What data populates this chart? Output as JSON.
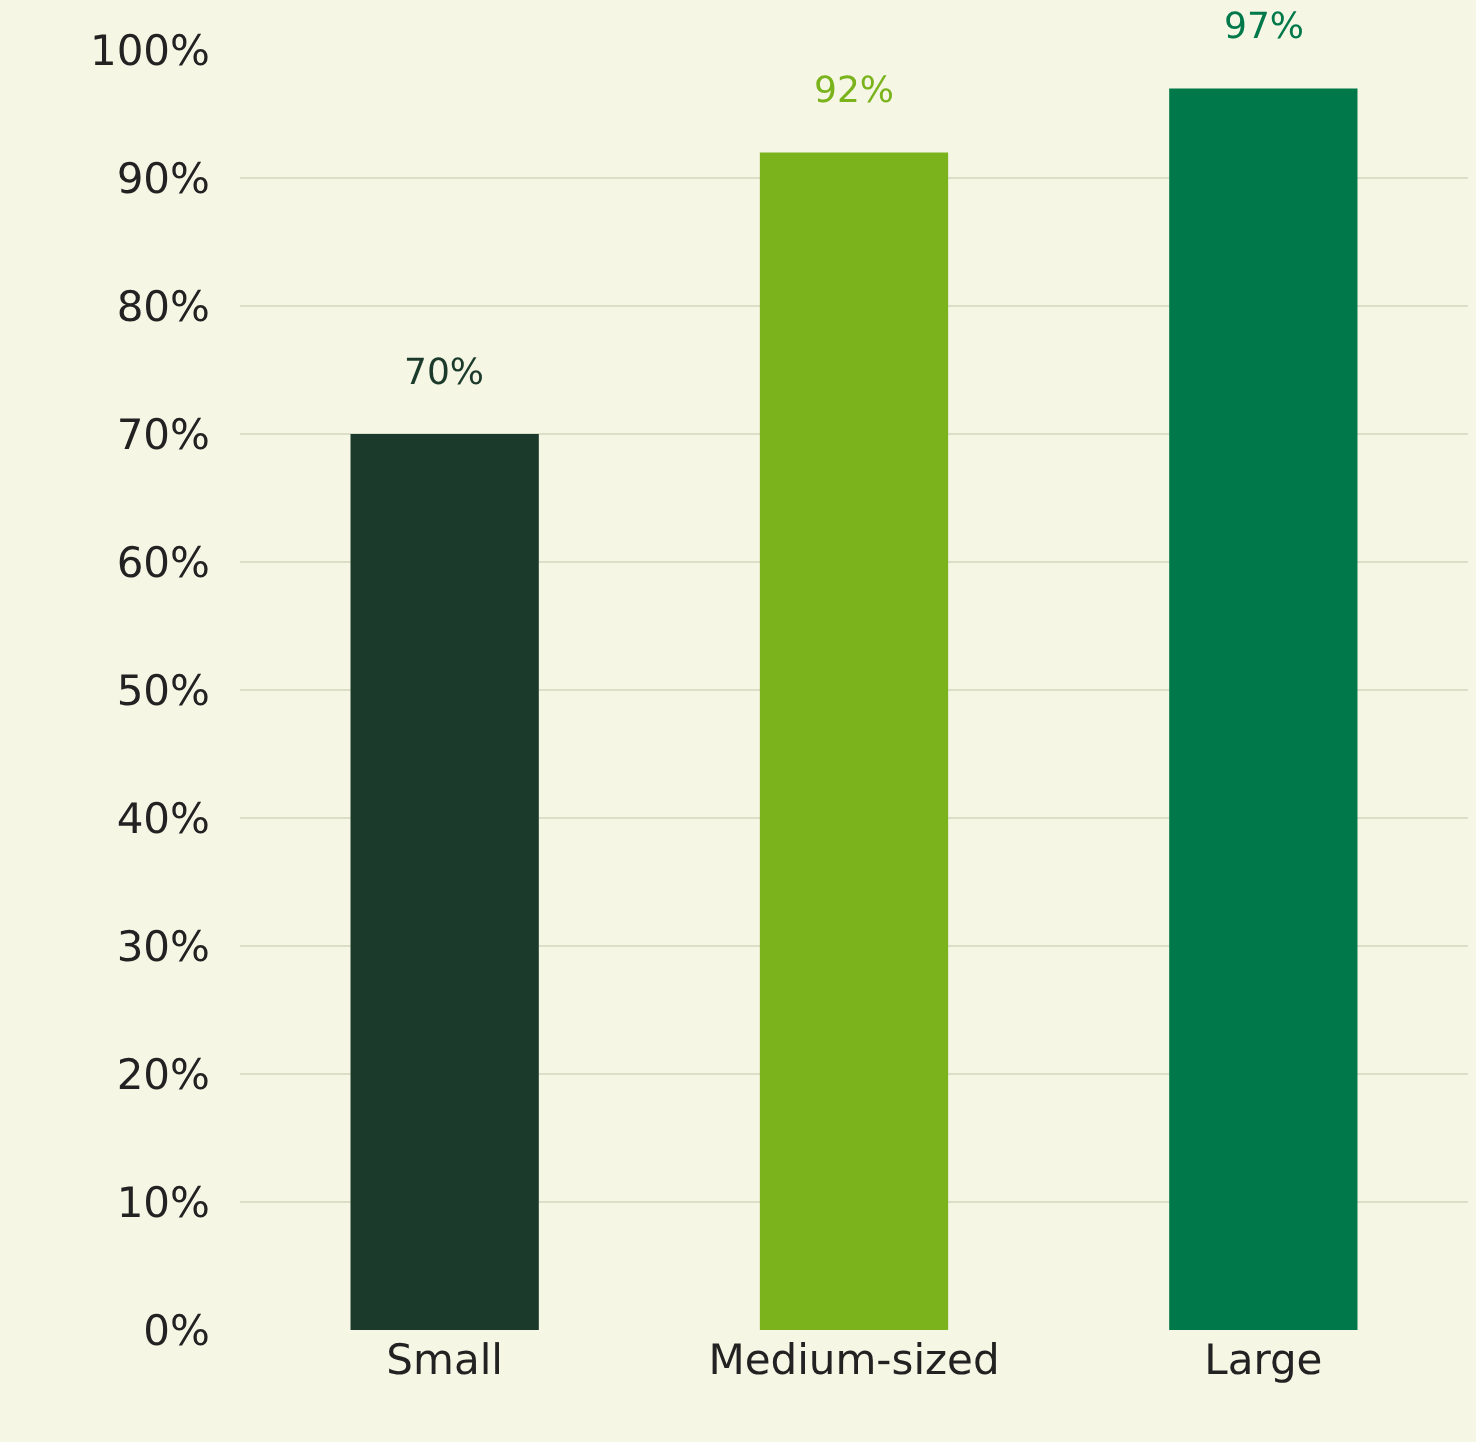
{
  "chart_data": {
    "type": "bar",
    "categories": [
      "Small",
      "Medium-sized",
      "Large"
    ],
    "values": [
      70,
      92,
      97
    ],
    "colors": [
      "#1c3a2b",
      "#7ab31c",
      "#00784a"
    ],
    "value_labels": [
      "70%",
      "92%",
      "97%"
    ],
    "ylim": [
      0,
      100
    ],
    "yticks": [
      {
        "value": 0,
        "label": "0%"
      },
      {
        "value": 10,
        "label": "10%"
      },
      {
        "value": 20,
        "label": "20%"
      },
      {
        "value": 30,
        "label": "30%"
      },
      {
        "value": 40,
        "label": "40%"
      },
      {
        "value": 50,
        "label": "50%"
      },
      {
        "value": 60,
        "label": "60%"
      },
      {
        "value": 70,
        "label": "70%"
      },
      {
        "value": 80,
        "label": "80%"
      },
      {
        "value": 90,
        "label": "90%"
      },
      {
        "value": 100,
        "label": "100%"
      }
    ],
    "grid": "y"
  }
}
